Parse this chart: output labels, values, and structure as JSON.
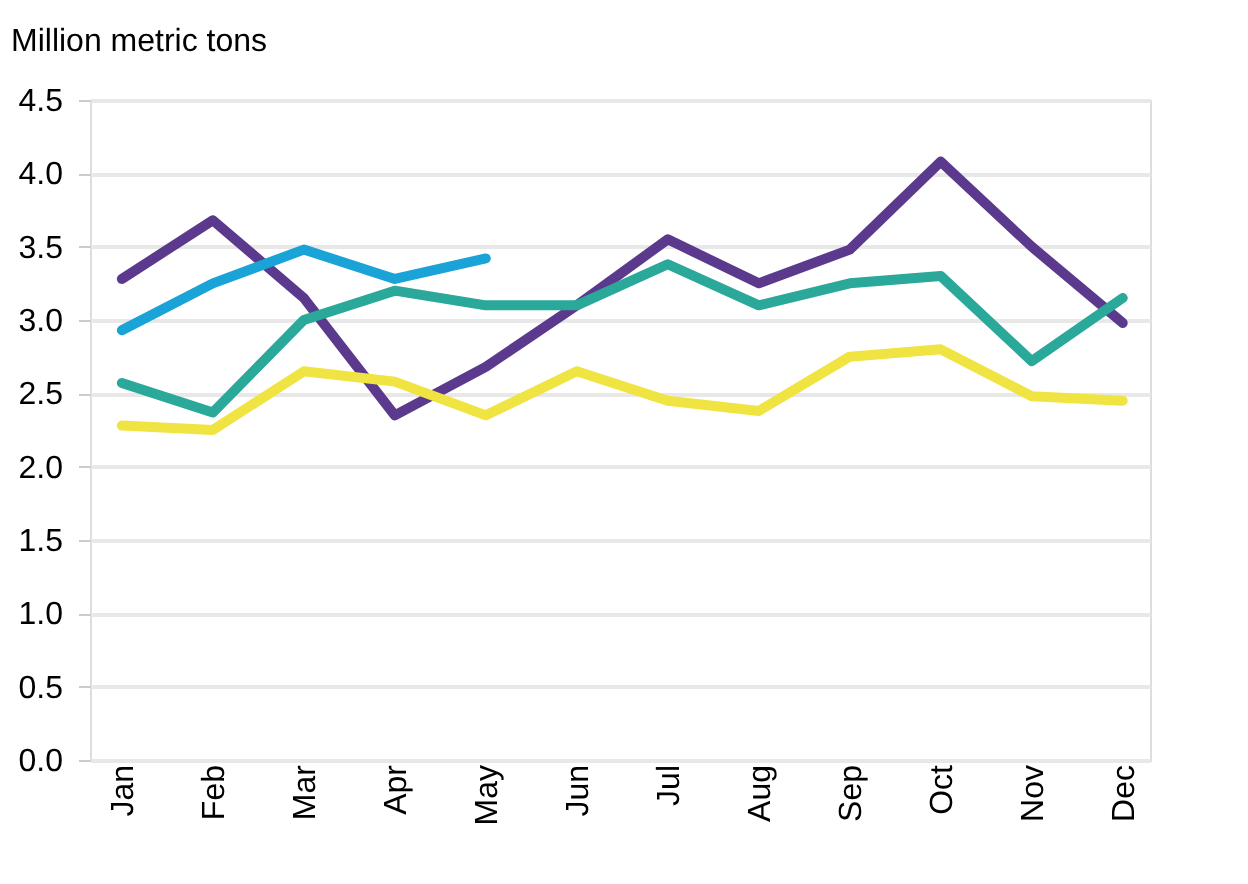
{
  "chart_data": {
    "type": "line",
    "ylabel": "Million metric tons",
    "categories": [
      "Jan",
      "Feb",
      "Mar",
      "Apr",
      "May",
      "Jun",
      "Jul",
      "Aug",
      "Sep",
      "Oct",
      "Nov",
      "Dec"
    ],
    "series": [
      {
        "color": "#5b3a8e",
        "values": [
          3.28,
          3.68,
          3.15,
          2.35,
          2.68,
          3.1,
          3.55,
          3.25,
          3.48,
          4.08,
          3.5,
          2.98
        ]
      },
      {
        "color": "#1aa3d6",
        "values": [
          2.93,
          3.25,
          3.48,
          3.28,
          3.42,
          null,
          null,
          null,
          null,
          null,
          null,
          null
        ]
      },
      {
        "color": "#2aa89a",
        "values": [
          2.57,
          2.37,
          3.0,
          3.2,
          3.1,
          3.1,
          3.38,
          3.1,
          3.25,
          3.3,
          2.72,
          3.15
        ]
      },
      {
        "color": "#f0e442",
        "values": [
          2.28,
          2.25,
          2.65,
          2.58,
          2.35,
          2.65,
          2.45,
          2.38,
          2.75,
          2.8,
          2.48,
          2.45
        ]
      }
    ],
    "ylim": [
      0,
      4.5
    ],
    "yticks": [
      {
        "value": 0,
        "label": "0.0"
      },
      {
        "value": 0.5,
        "label": "0.5"
      },
      {
        "value": 1,
        "label": "1.0"
      },
      {
        "value": 1.5,
        "label": "1.5"
      },
      {
        "value": 2,
        "label": "2.0"
      },
      {
        "value": 2.5,
        "label": "2.5"
      },
      {
        "value": 3,
        "label": "3.0"
      },
      {
        "value": 3.5,
        "label": "3.5"
      },
      {
        "value": 4,
        "label": "4.0"
      },
      {
        "value": 4.5,
        "label": "4.5"
      }
    ],
    "grid": "y",
    "legend": false,
    "marker": "none",
    "line_style": "solid"
  }
}
